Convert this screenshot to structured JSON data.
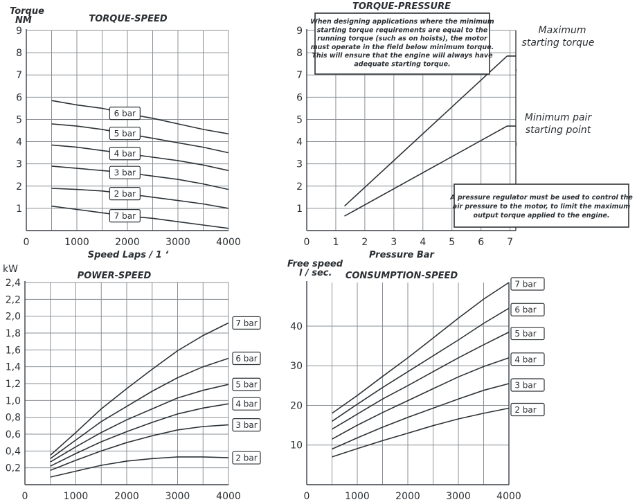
{
  "chart_data": [
    {
      "id": "torque_speed",
      "type": "line",
      "title": "TORQUE-SPEED",
      "ylabel_lines": [
        "Torque",
        "NM"
      ],
      "xlabel": "Speed Laps / 1 ‘",
      "xlim": [
        0,
        4000
      ],
      "ylim": [
        0,
        9
      ],
      "x_ticks": [
        0,
        1000,
        2000,
        3000,
        4000
      ],
      "y_ticks": [
        1,
        2,
        3,
        4,
        5,
        6,
        7,
        8,
        9
      ],
      "series": [
        {
          "name": "6 bar",
          "label_at": 1950,
          "points": [
            [
              500,
              5.85
            ],
            [
              1000,
              5.65
            ],
            [
              1500,
              5.5
            ],
            [
              2000,
              5.25
            ],
            [
              2500,
              5.05
            ],
            [
              3000,
              4.8
            ],
            [
              3500,
              4.55
            ],
            [
              4000,
              4.35
            ]
          ]
        },
        {
          "name": "5 bar",
          "label_at": 1950,
          "points": [
            [
              500,
              4.8
            ],
            [
              1000,
              4.7
            ],
            [
              1500,
              4.55
            ],
            [
              2000,
              4.35
            ],
            [
              2500,
              4.15
            ],
            [
              3000,
              3.95
            ],
            [
              3500,
              3.75
            ],
            [
              4000,
              3.5
            ]
          ]
        },
        {
          "name": "4 bar",
          "label_at": 1950,
          "points": [
            [
              500,
              3.85
            ],
            [
              1000,
              3.75
            ],
            [
              1500,
              3.6
            ],
            [
              2000,
              3.45
            ],
            [
              2500,
              3.3
            ],
            [
              3000,
              3.15
            ],
            [
              3500,
              2.95
            ],
            [
              4000,
              2.7
            ]
          ]
        },
        {
          "name": "3 bar",
          "label_at": 1950,
          "points": [
            [
              500,
              2.9
            ],
            [
              1000,
              2.8
            ],
            [
              1500,
              2.7
            ],
            [
              2000,
              2.6
            ],
            [
              2500,
              2.45
            ],
            [
              3000,
              2.3
            ],
            [
              3500,
              2.1
            ],
            [
              4000,
              1.85
            ]
          ]
        },
        {
          "name": "2 bar",
          "label_at": 1950,
          "points": [
            [
              500,
              1.9
            ],
            [
              1000,
              1.85
            ],
            [
              1500,
              1.78
            ],
            [
              2000,
              1.65
            ],
            [
              2500,
              1.5
            ],
            [
              3000,
              1.35
            ],
            [
              3500,
              1.2
            ],
            [
              4000,
              1.0
            ]
          ]
        },
        {
          "name": "7 bar",
          "label_at": 1950,
          "points": [
            [
              500,
              1.1
            ],
            [
              1000,
              0.95
            ],
            [
              1500,
              0.8
            ],
            [
              2000,
              0.65
            ],
            [
              2500,
              0.55
            ],
            [
              3000,
              0.4
            ],
            [
              3500,
              0.25
            ],
            [
              4000,
              0.1
            ]
          ]
        }
      ]
    },
    {
      "id": "torque_pressure",
      "type": "line",
      "title": "TORQUE-PRESSURE",
      "xlabel": "Pressure Bar",
      "xlim": [
        0,
        7.2
      ],
      "ylim": [
        0,
        9
      ],
      "x_ticks": [
        0,
        1,
        2,
        3,
        4,
        5,
        6,
        7
      ],
      "y_ticks": [
        1,
        2,
        3,
        4,
        5,
        6,
        7,
        8,
        9
      ],
      "series": [
        {
          "name": "Maximum starting torque",
          "points": [
            [
              1.3,
              1.1
            ],
            [
              6.9,
              7.85
            ],
            [
              7.2,
              7.85
            ]
          ]
        },
        {
          "name": "Minimum pair starting point",
          "points": [
            [
              1.3,
              0.65
            ],
            [
              6.9,
              4.7
            ],
            [
              7.2,
              4.7
            ]
          ]
        }
      ],
      "annotations": {
        "maximum": [
          "Maximum",
          "starting torque"
        ],
        "minimum": [
          "Minimum pair",
          "starting point"
        ],
        "note_top": [
          "When designing applications where the minimum",
          "starting torque requirements are equal to the",
          "running torque (such as on hoists), the motor",
          "must operate in the field below minimum torque.",
          "This will ensure that the engine will always have",
          "adequate starting torque."
        ],
        "note_bottom": [
          "A pressure regulator must be used to control the",
          "air pressure to the motor, to limit the maximum",
          "output torque applied to the engine."
        ]
      }
    },
    {
      "id": "power_speed",
      "type": "line",
      "title": "POWER-SPEED",
      "ylabel_lines": [
        "kW"
      ],
      "xlim": [
        0,
        4000
      ],
      "ylim": [
        0,
        2.4
      ],
      "x_ticks": [
        0,
        1000,
        2000,
        3000,
        4000
      ],
      "y_ticks": [
        "0,2",
        "0,4",
        "0,6",
        "0,8",
        "1,0",
        "1,2",
        "1,4",
        "1,6",
        "1,8",
        "2,0",
        "2,2",
        "2,4"
      ],
      "series": [
        {
          "name": "7 bar",
          "points": [
            [
              500,
              0.35
            ],
            [
              1000,
              0.62
            ],
            [
              1500,
              0.9
            ],
            [
              2000,
              1.14
            ],
            [
              2500,
              1.37
            ],
            [
              3000,
              1.59
            ],
            [
              3500,
              1.77
            ],
            [
              4000,
              1.92
            ]
          ]
        },
        {
          "name": "6 bar",
          "points": [
            [
              500,
              0.31
            ],
            [
              1000,
              0.53
            ],
            [
              1500,
              0.75
            ],
            [
              2000,
              0.93
            ],
            [
              2500,
              1.11
            ],
            [
              3000,
              1.27
            ],
            [
              3500,
              1.4
            ],
            [
              4000,
              1.5
            ]
          ]
        },
        {
          "name": "5 bar",
          "points": [
            [
              500,
              0.27
            ],
            [
              1000,
              0.45
            ],
            [
              1500,
              0.62
            ],
            [
              2000,
              0.77
            ],
            [
              2500,
              0.9
            ],
            [
              3000,
              1.03
            ],
            [
              3500,
              1.12
            ],
            [
              4000,
              1.19
            ]
          ]
        },
        {
          "name": "4 bar",
          "points": [
            [
              500,
              0.22
            ],
            [
              1000,
              0.37
            ],
            [
              1500,
              0.51
            ],
            [
              2000,
              0.63
            ],
            [
              2500,
              0.74
            ],
            [
              3000,
              0.84
            ],
            [
              3500,
              0.91
            ],
            [
              4000,
              0.96
            ]
          ]
        },
        {
          "name": "3 bar",
          "points": [
            [
              500,
              0.17
            ],
            [
              1000,
              0.29
            ],
            [
              1500,
              0.4
            ],
            [
              2000,
              0.5
            ],
            [
              2500,
              0.58
            ],
            [
              3000,
              0.65
            ],
            [
              3500,
              0.69
            ],
            [
              4000,
              0.71
            ]
          ]
        },
        {
          "name": "2 bar",
          "points": [
            [
              500,
              0.09
            ],
            [
              1000,
              0.16
            ],
            [
              1500,
              0.23
            ],
            [
              2000,
              0.28
            ],
            [
              2500,
              0.31
            ],
            [
              3000,
              0.33
            ],
            [
              3500,
              0.33
            ],
            [
              4000,
              0.32
            ]
          ]
        }
      ]
    },
    {
      "id": "consumption_speed",
      "type": "line",
      "title": "CONSUMPTION-SPEED",
      "ylabel_lines": [
        "Free speed",
        "l / sec."
      ],
      "xlim": [
        0,
        4000
      ],
      "ylim": [
        0,
        51
      ],
      "x_ticks": [
        0,
        1000,
        2000,
        3000,
        4000
      ],
      "y_ticks": [
        10,
        20,
        30,
        40
      ],
      "series": [
        {
          "name": "7 bar",
          "points": [
            [
              500,
              18
            ],
            [
              1000,
              22.5
            ],
            [
              1500,
              27.3
            ],
            [
              2000,
              32
            ],
            [
              2500,
              37
            ],
            [
              3000,
              42
            ],
            [
              3500,
              46.8
            ],
            [
              4000,
              51
            ]
          ]
        },
        {
          "name": "6 bar",
          "points": [
            [
              500,
              16
            ],
            [
              1000,
              20.3
            ],
            [
              1500,
              24.5
            ],
            [
              2000,
              28.5
            ],
            [
              2500,
              32.5
            ],
            [
              3000,
              36.5
            ],
            [
              3500,
              40.7
            ],
            [
              4000,
              44.5
            ]
          ]
        },
        {
          "name": "5 bar",
          "points": [
            [
              500,
              14
            ],
            [
              1000,
              17.8
            ],
            [
              1500,
              21.6
            ],
            [
              2000,
              25
            ],
            [
              2500,
              28.5
            ],
            [
              3000,
              32
            ],
            [
              3500,
              35.3
            ],
            [
              4000,
              38.5
            ]
          ]
        },
        {
          "name": "4 bar",
          "points": [
            [
              500,
              11.5
            ],
            [
              1000,
              15
            ],
            [
              1500,
              18.2
            ],
            [
              2000,
              21.2
            ],
            [
              2500,
              24.2
            ],
            [
              3000,
              27.2
            ],
            [
              3500,
              29.8
            ],
            [
              4000,
              32
            ]
          ]
        },
        {
          "name": "3 bar",
          "points": [
            [
              500,
              9
            ],
            [
              1000,
              11.8
            ],
            [
              1500,
              14.5
            ],
            [
              2000,
              17
            ],
            [
              2500,
              19.3
            ],
            [
              3000,
              21.6
            ],
            [
              3500,
              23.8
            ],
            [
              4000,
              25.5
            ]
          ]
        },
        {
          "name": "2 bar",
          "points": [
            [
              500,
              7
            ],
            [
              1000,
              9.1
            ],
            [
              1500,
              11.1
            ],
            [
              2000,
              13
            ],
            [
              2500,
              14.9
            ],
            [
              3000,
              16.6
            ],
            [
              3500,
              18
            ],
            [
              4000,
              19.3
            ]
          ]
        }
      ]
    }
  ]
}
